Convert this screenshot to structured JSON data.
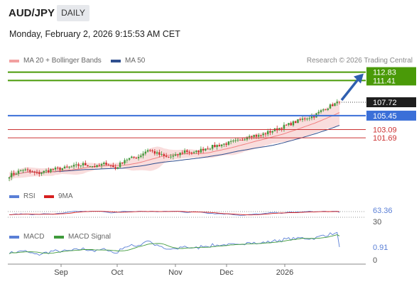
{
  "header": {
    "symbol": "AUD/JPY",
    "timeframe": "DAILY",
    "datetime": "Monday, February 2, 2026 9:15:53 AM CET"
  },
  "legend": {
    "ma20_bb": "MA 20 + Bollinger Bands",
    "ma50": "MA 50",
    "credit": "Research © 2026 Trading Central"
  },
  "rsi_legend": {
    "rsi": "RSI",
    "ma9": "9MA"
  },
  "macd_legend": {
    "macd": "MACD",
    "signal": "MACD Signal"
  },
  "colors": {
    "up_candle": "#3f9a3b",
    "down_candle": "#cc2a2a",
    "target": "#4a9a08",
    "pivot": "#3a6fd8",
    "support": "#cc3333",
    "ma20": "#f08080",
    "ma50": "#2f4f8f",
    "band": "#f6cece",
    "arrow": "#2f5fb0"
  },
  "chart_data": [
    {
      "type": "candlestick",
      "x_labels": [
        "Sep",
        "Oct",
        "Nov",
        "Dec",
        "2026"
      ],
      "levels": [
        {
          "value": 112.83,
          "label": "112.83",
          "kind": "target"
        },
        {
          "value": 111.41,
          "label": "111.41",
          "kind": "target"
        },
        {
          "value": 107.72,
          "label": "107.72",
          "kind": "last"
        },
        {
          "value": 105.45,
          "label": "105.45",
          "kind": "pivot"
        },
        {
          "value": 103.09,
          "label": "103.09",
          "kind": "support"
        },
        {
          "value": 101.69,
          "label": "101.69",
          "kind": "support"
        }
      ],
      "ylim": [
        94.0,
        113.5
      ],
      "price_anchors": [
        [
          0,
          95.3
        ],
        [
          6,
          96.3
        ],
        [
          12,
          95.6
        ],
        [
          18,
          96.3
        ],
        [
          25,
          96.6
        ],
        [
          32,
          97.2
        ],
        [
          38,
          96.8
        ],
        [
          42,
          97.4
        ],
        [
          46,
          96.5
        ],
        [
          50,
          98.0
        ],
        [
          56,
          98.5
        ],
        [
          60,
          99.7
        ],
        [
          64,
          99.0
        ],
        [
          68,
          98.4
        ],
        [
          72,
          98.6
        ],
        [
          76,
          99.5
        ],
        [
          80,
          99.1
        ],
        [
          84,
          99.8
        ],
        [
          90,
          100.4
        ],
        [
          96,
          100.9
        ],
        [
          100,
          101.2
        ],
        [
          104,
          102.2
        ],
        [
          108,
          102.0
        ],
        [
          112,
          102.6
        ],
        [
          116,
          103.2
        ],
        [
          120,
          103.8
        ],
        [
          124,
          104.4
        ],
        [
          128,
          105.0
        ],
        [
          132,
          105.4
        ],
        [
          136,
          106.5
        ],
        [
          140,
          107.3
        ],
        [
          143,
          107.72
        ]
      ],
      "moving_averages": {
        "ma20_end": 105.7,
        "ma50_end": 104.5,
        "band_upper_end": 107.0,
        "band_lower_end": 104.4
      },
      "forecast_target": 112.83
    },
    {
      "type": "line",
      "name": "RSI",
      "series": [
        {
          "name": "RSI"
        },
        {
          "name": "9MA"
        }
      ],
      "levels": [
        70,
        30
      ],
      "last_value": 63.36,
      "tick_labels": [
        "63.36",
        "30"
      ]
    },
    {
      "type": "line",
      "name": "MACD",
      "series": [
        {
          "name": "MACD"
        },
        {
          "name": "MACD Signal"
        }
      ],
      "last_value": 0.91,
      "tick_labels": [
        "0.91",
        "0"
      ]
    }
  ]
}
